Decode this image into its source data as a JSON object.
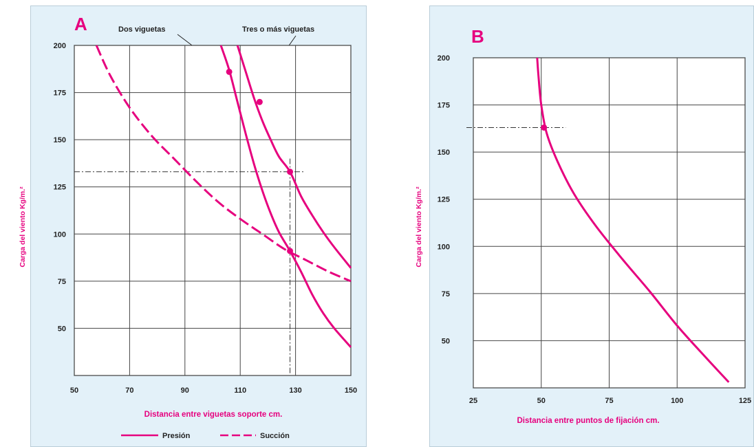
{
  "chart_data": [
    {
      "type": "line",
      "panel_letter": "A",
      "xlabel": "Distancia entre viguetas soporte cm.",
      "ylabel": "Carga del viento Kg/m.²",
      "xlim": [
        50,
        150
      ],
      "ylim": [
        25,
        200
      ],
      "x_ticks": [
        "50",
        "70",
        "90",
        "110",
        "130",
        "150"
      ],
      "y_ticks": [
        "50",
        "75",
        "100",
        "125",
        "150",
        "175",
        "200"
      ],
      "grid": true,
      "legend": [
        {
          "label": "Presión",
          "style": "solid"
        },
        {
          "label": "Succión",
          "style": "dashed"
        }
      ],
      "annotations": [
        {
          "text": "Dos viguetas",
          "x": 106,
          "y": 186
        },
        {
          "text": "Tres o más viguetas",
          "x": 117,
          "y": 170
        }
      ],
      "series": [
        {
          "name": "Dos viguetas",
          "style": "solid",
          "color": "#e6007e",
          "x": [
            103,
            106,
            109,
            112,
            115,
            118,
            121,
            124,
            128,
            132,
            136,
            140,
            144,
            150
          ],
          "y": [
            200,
            187,
            170,
            153,
            137,
            123,
            111,
            101,
            91,
            80,
            68,
            58,
            50,
            40
          ]
        },
        {
          "name": "Tres o más viguetas",
          "style": "solid",
          "color": "#e6007e",
          "x": [
            109,
            112,
            115,
            118,
            121,
            124,
            128,
            132,
            136,
            140,
            144,
            150
          ],
          "y": [
            200,
            186,
            172,
            160,
            150,
            141,
            133,
            120,
            110,
            101,
            93,
            82
          ]
        },
        {
          "name": "Succión",
          "style": "dashed",
          "color": "#e6007e",
          "x": [
            58,
            63,
            70,
            78,
            86,
            94,
            102,
            110,
            118,
            126,
            134,
            142,
            150
          ],
          "y": [
            200,
            184,
            167,
            152,
            140,
            128,
            117,
            108,
            100,
            92,
            86,
            80,
            75
          ]
        }
      ],
      "markers": [
        {
          "x": 106,
          "y": 186
        },
        {
          "x": 117,
          "y": 170
        },
        {
          "x": 128,
          "y": 133
        },
        {
          "x": 128,
          "y": 91
        }
      ],
      "reference_lines": [
        {
          "type": "v",
          "x": 128
        },
        {
          "type": "h",
          "y": 133
        }
      ]
    },
    {
      "type": "line",
      "panel_letter": "B",
      "xlabel": "Distancia entre puntos de fijación cm.",
      "ylabel": "Carga del viento Kg/m.²",
      "xlim": [
        25,
        125
      ],
      "ylim": [
        25,
        200
      ],
      "x_ticks": [
        "25",
        "50",
        "75",
        "100",
        "125"
      ],
      "y_ticks": [
        "50",
        "75",
        "100",
        "125",
        "150",
        "175",
        "200"
      ],
      "grid": true,
      "series": [
        {
          "style": "solid",
          "color": "#e6007e",
          "x": [
            48.5,
            49,
            50,
            52,
            56,
            62,
            70,
            80,
            90,
            100,
            110,
            119
          ],
          "y": [
            200,
            190,
            175,
            160,
            145,
            128,
            111,
            93,
            76,
            58,
            42,
            28
          ]
        }
      ],
      "markers": [
        {
          "x": 51,
          "y": 163
        }
      ],
      "reference_lines": [
        {
          "type": "h",
          "y": 163
        }
      ]
    }
  ]
}
